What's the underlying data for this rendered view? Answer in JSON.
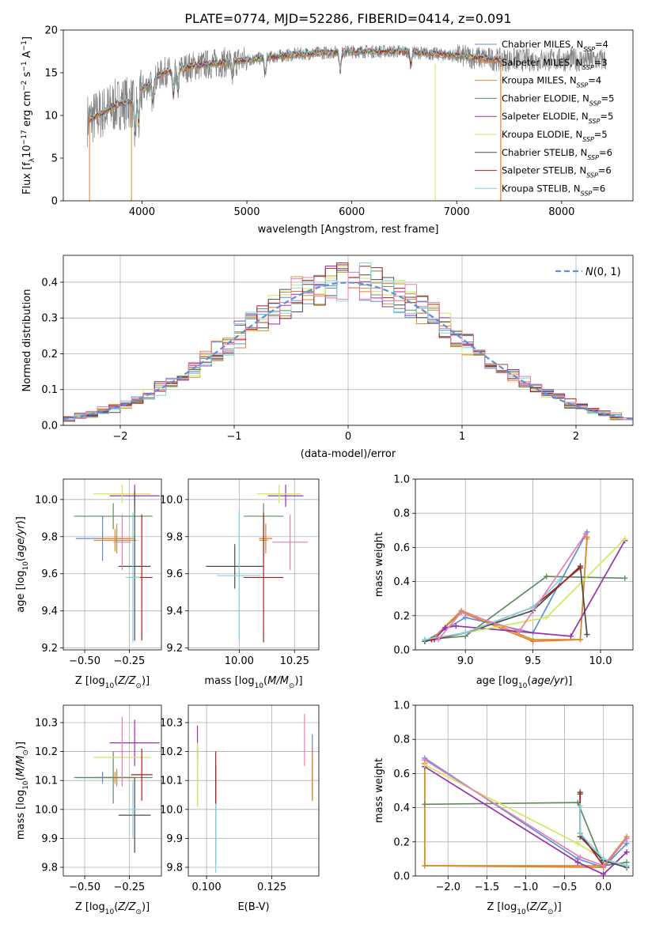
{
  "figure": {
    "title": "PLATE=0774, MJD=52286, FIBERID=0414, z=0.091",
    "colors": {
      "Chabrier MILES": "#5b8fdb",
      "Salpeter MILES": "#e27b33",
      "Kroupa MILES": "#d4902f",
      "Chabrier ELODIE": "#5e8c62",
      "Salpeter ELODIE": "#9a30b0",
      "Kroupa ELODIE": "#cfe85a",
      "Chabrier STELIB": "#4a4a4a",
      "Salpeter STELIB": "#b01c1c",
      "Kroupa STELIB": "#7fd4e0",
      "extra": "#e57fb3",
      "data": "#808080"
    }
  },
  "chart_data": [
    {
      "id": "spectrum",
      "type": "line",
      "xlabel": "wavelength [Angstrom, rest frame]",
      "ylabel_parts": [
        "Flux [f",
        "λ",
        "10",
        "−17",
        " erg cm",
        "−2",
        " s",
        "−1",
        " A",
        "−1",
        "]"
      ],
      "xlim": [
        3250,
        8680
      ],
      "ylim": [
        0,
        20
      ],
      "xticks": [
        4000,
        5000,
        6000,
        7000,
        8000
      ],
      "yticks": [
        0,
        5,
        10,
        15,
        20
      ],
      "grid": false,
      "legend_position": "upper right",
      "legend": [
        {
          "label": "Chabrier MILES, N",
          "sub": "SSP",
          "tail": "=4",
          "key": "Chabrier MILES"
        },
        {
          "label": "Salpeter MILES, N",
          "sub": "SSP",
          "tail": "=3",
          "key": "Salpeter MILES"
        },
        {
          "label": "Kroupa MILES, N",
          "sub": "SSP",
          "tail": "=4",
          "key": "Kroupa MILES"
        },
        {
          "label": "Chabrier ELODIE, N",
          "sub": "SSP",
          "tail": "=5",
          "key": "Chabrier ELODIE"
        },
        {
          "label": "Salpeter ELODIE, N",
          "sub": "SSP",
          "tail": "=5",
          "key": "Salpeter ELODIE"
        },
        {
          "label": "Kroupa ELODIE, N",
          "sub": "SSP",
          "tail": "=5",
          "key": "Kroupa ELODIE"
        },
        {
          "label": "Chabrier STELIB, N",
          "sub": "SSP",
          "tail": "=6",
          "key": "Chabrier STELIB"
        },
        {
          "label": "Salpeter STELIB, N",
          "sub": "SSP",
          "tail": "=6",
          "key": "Salpeter STELIB"
        },
        {
          "label": "Kroupa STELIB, N",
          "sub": "SSP",
          "tail": "=6",
          "key": "Kroupa STELIB"
        }
      ],
      "continuum_points": [
        [
          3500,
          9.5
        ],
        [
          3650,
          10.5
        ],
        [
          3800,
          11.5
        ],
        [
          3900,
          11.5
        ],
        [
          4000,
          13.0
        ],
        [
          4200,
          15.0
        ],
        [
          4500,
          15.8
        ],
        [
          5000,
          16.5
        ],
        [
          5500,
          17.2
        ],
        [
          6000,
          17.5
        ],
        [
          6500,
          17.5
        ],
        [
          7000,
          17.0
        ],
        [
          7420,
          16.5
        ]
      ],
      "data_range": [
        3480,
        8420
      ],
      "models_range": [
        3500,
        7420
      ]
    },
    {
      "id": "residual-histogram",
      "type": "histogram",
      "xlabel": "(data-model)/error",
      "ylabel": "Normed distribution",
      "xlim": [
        -2.5,
        2.5
      ],
      "ylim": [
        0,
        0.475
      ],
      "xticks": [
        -2,
        -1,
        0,
        1,
        2
      ],
      "yticks": [
        0.0,
        0.1,
        0.2,
        0.3,
        0.4
      ],
      "grid": true,
      "legend_position": "upper right",
      "reference_curve": {
        "label": "N(0,1)",
        "color": "#5b8fdb",
        "style": "dashed"
      },
      "bin_width": 0.1
    },
    {
      "id": "age-vs-Z",
      "type": "scatter",
      "xlabel": "Z [log10(Z/Z⊙)]",
      "ylabel": "age  [log10(age/yr)]",
      "xlim": [
        -0.62,
        -0.07
      ],
      "ylim": [
        9.19,
        10.11
      ],
      "xticks": [
        -0.5,
        -0.25
      ],
      "yticks": [
        9.2,
        9.4,
        9.6,
        9.8,
        10.0
      ],
      "grid": true,
      "points": [
        {
          "key": "Chabrier MILES",
          "x": -0.4,
          "y": 9.79,
          "xerr": 0.15,
          "yerr": 0.12
        },
        {
          "key": "Salpeter MILES",
          "x": -0.32,
          "y": 9.79,
          "xerr": 0.1,
          "yerr": 0.08
        },
        {
          "key": "Kroupa MILES",
          "x": -0.33,
          "y": 9.78,
          "xerr": 0.12,
          "yerr": 0.06
        },
        {
          "key": "Chabrier ELODIE",
          "x": -0.34,
          "y": 9.91,
          "xerr": 0.22,
          "yerr": 0.07
        },
        {
          "key": "Salpeter ELODIE",
          "x": -0.22,
          "y": 10.02,
          "xerr": 0.14,
          "yerr": 0.06
        },
        {
          "key": "Kroupa ELODIE",
          "x": -0.29,
          "y": 10.03,
          "xerr": 0.16,
          "yerr": 0.05
        },
        {
          "key": "Chabrier STELIB",
          "x": -0.22,
          "y": 9.64,
          "xerr": 0.09,
          "yerr": 0.4
        },
        {
          "key": "Salpeter STELIB",
          "x": -0.18,
          "y": 9.58,
          "xerr": 0.06,
          "yerr": 0.34
        },
        {
          "key": "Kroupa STELIB",
          "x": -0.23,
          "y": 9.58,
          "xerr": 0.04,
          "yerr": 0.35
        },
        {
          "key": "extra",
          "x": -0.29,
          "y": 9.77,
          "xerr": 0.05,
          "yerr": 0.15
        }
      ]
    },
    {
      "id": "age-vs-mass",
      "type": "scatter",
      "xlabel": "mass [log10(M/M⊙)]",
      "ylabel": "",
      "xlim": [
        9.77,
        10.36
      ],
      "ylim": [
        9.19,
        10.11
      ],
      "xticks": [
        10.0,
        10.25
      ],
      "yticks": [
        9.2,
        9.4,
        9.6,
        9.8,
        10.0
      ],
      "grid": true,
      "points": [
        {
          "key": "Chabrier MILES",
          "x": 10.11,
          "y": 9.79,
          "xerr": 0.02,
          "yerr": 0.12
        },
        {
          "key": "Salpeter MILES",
          "x": 10.12,
          "y": 9.79,
          "xerr": 0.03,
          "yerr": 0.08
        },
        {
          "key": "Kroupa MILES",
          "x": 10.11,
          "y": 9.78,
          "xerr": 0.02,
          "yerr": 0.06
        },
        {
          "key": "Chabrier ELODIE",
          "x": 10.11,
          "y": 9.91,
          "xerr": 0.09,
          "yerr": 0.07
        },
        {
          "key": "Salpeter ELODIE",
          "x": 10.21,
          "y": 10.02,
          "xerr": 0.08,
          "yerr": 0.06
        },
        {
          "key": "Kroupa ELODIE",
          "x": 10.18,
          "y": 10.03,
          "xerr": 0.1,
          "yerr": 0.05
        },
        {
          "key": "Chabrier STELIB",
          "x": 9.98,
          "y": 9.64,
          "xerr": 0.13,
          "yerr": 0.12
        },
        {
          "key": "Salpeter STELIB",
          "x": 10.11,
          "y": 9.58,
          "xerr": 0.09,
          "yerr": 0.35
        },
        {
          "key": "Kroupa STELIB",
          "x": 10.0,
          "y": 9.59,
          "xerr": 0.1,
          "yerr": 0.35
        },
        {
          "key": "extra",
          "x": 10.23,
          "y": 9.77,
          "xerr": 0.08,
          "yerr": 0.15
        }
      ]
    },
    {
      "id": "weight-vs-age",
      "type": "line",
      "xlabel": "age  [log10(age/yr)]",
      "ylabel": "mass weight",
      "xlim": [
        8.63,
        10.24
      ],
      "ylim": [
        0,
        1
      ],
      "xticks": [
        9.0,
        9.5,
        10.0
      ],
      "yticks": [
        0.0,
        0.2,
        0.4,
        0.6,
        0.8,
        1.0
      ],
      "grid": true,
      "series": [
        {
          "key": "Chabrier MILES",
          "points": [
            [
              8.7,
              0.05
            ],
            [
              9.0,
              0.19
            ],
            [
              9.5,
              0.1
            ],
            [
              9.9,
              0.69
            ]
          ]
        },
        {
          "key": "Salpeter MILES",
          "points": [
            [
              8.75,
              0.06
            ],
            [
              8.97,
              0.22
            ],
            [
              9.5,
              0.05
            ],
            [
              9.85,
              0.06
            ],
            [
              9.9,
              0.66
            ]
          ]
        },
        {
          "key": "Kroupa MILES",
          "points": [
            [
              8.75,
              0.06
            ],
            [
              8.97,
              0.23
            ],
            [
              9.5,
              0.06
            ],
            [
              9.85,
              0.06
            ],
            [
              9.9,
              0.65
            ]
          ]
        },
        {
          "key": "Chabrier ELODIE",
          "points": [
            [
              8.7,
              0.06
            ],
            [
              9.0,
              0.08
            ],
            [
              9.6,
              0.43
            ],
            [
              10.18,
              0.42
            ]
          ]
        },
        {
          "key": "Salpeter ELODIE",
          "points": [
            [
              8.77,
              0.06
            ],
            [
              8.85,
              0.13
            ],
            [
              8.93,
              0.14
            ],
            [
              9.78,
              0.08
            ],
            [
              10.18,
              0.64
            ]
          ]
        },
        {
          "key": "Kroupa ELODIE",
          "points": [
            [
              8.75,
              0.06
            ],
            [
              9.0,
              0.1
            ],
            [
              9.6,
              0.19
            ],
            [
              10.18,
              0.65
            ]
          ]
        },
        {
          "key": "Chabrier STELIB",
          "points": [
            [
              8.7,
              0.05
            ],
            [
              9.0,
              0.1
            ],
            [
              9.5,
              0.23
            ],
            [
              9.85,
              0.49
            ],
            [
              9.9,
              0.09
            ]
          ]
        },
        {
          "key": "Salpeter STELIB",
          "points": [
            [
              8.75,
              0.06
            ],
            [
              9.0,
              0.1
            ],
            [
              9.5,
              0.25
            ],
            [
              9.85,
              0.48
            ]
          ]
        },
        {
          "key": "Kroupa STELIB",
          "points": [
            [
              8.7,
              0.06
            ],
            [
              9.0,
              0.1
            ],
            [
              9.5,
              0.25
            ],
            [
              9.7,
              0.41
            ]
          ]
        },
        {
          "key": "extra",
          "points": [
            [
              8.8,
              0.06
            ],
            [
              8.97,
              0.22
            ],
            [
              9.4,
              0.11
            ],
            [
              9.89,
              0.68
            ]
          ]
        }
      ]
    },
    {
      "id": "mass-vs-Z",
      "type": "scatter",
      "xlabel": "Z [log10(Z/Z⊙)]",
      "ylabel": "mass [log10(M/M⊙)]",
      "xlim": [
        -0.62,
        -0.07
      ],
      "ylim": [
        9.77,
        10.36
      ],
      "xticks": [
        -0.5,
        -0.25
      ],
      "yticks": [
        9.8,
        9.9,
        10.0,
        10.1,
        10.2,
        10.3
      ],
      "grid": true,
      "points": [
        {
          "key": "Chabrier MILES",
          "x": -0.4,
          "y": 10.11,
          "xerr": 0.15,
          "yerr": 0.02
        },
        {
          "key": "Salpeter MILES",
          "x": -0.32,
          "y": 10.11,
          "xerr": 0.1,
          "yerr": 0.03
        },
        {
          "key": "Kroupa MILES",
          "x": -0.33,
          "y": 10.11,
          "xerr": 0.12,
          "yerr": 0.02
        },
        {
          "key": "Chabrier ELODIE",
          "x": -0.34,
          "y": 10.11,
          "xerr": 0.22,
          "yerr": 0.09
        },
        {
          "key": "Salpeter ELODIE",
          "x": -0.22,
          "y": 10.23,
          "xerr": 0.14,
          "yerr": 0.08
        },
        {
          "key": "Kroupa ELODIE",
          "x": -0.29,
          "y": 10.18,
          "xerr": 0.16,
          "yerr": 0.1
        },
        {
          "key": "Chabrier STELIB",
          "x": -0.22,
          "y": 9.98,
          "xerr": 0.09,
          "yerr": 0.13
        },
        {
          "key": "Salpeter STELIB",
          "x": -0.18,
          "y": 10.12,
          "xerr": 0.06,
          "yerr": 0.09
        },
        {
          "key": "Kroupa STELIB",
          "x": -0.23,
          "y": 10.0,
          "xerr": 0.04,
          "yerr": 0.1
        },
        {
          "key": "extra",
          "x": -0.29,
          "y": 10.2,
          "xerr": 0.05,
          "yerr": 0.12
        }
      ]
    },
    {
      "id": "mass-vs-ebv",
      "type": "scatter",
      "xlabel": "E(B-V)",
      "ylabel": "",
      "xlim": [
        0.093,
        0.143
      ],
      "ylim": [
        9.77,
        10.36
      ],
      "xticks": [
        0.1,
        0.125
      ],
      "yticks": [
        9.8,
        9.9,
        10.0,
        10.1,
        10.2,
        10.3
      ],
      "grid": true,
      "points": [
        {
          "key": "Chabrier MILES",
          "x": 0.1405,
          "y": 10.16,
          "yerr": 0.1
        },
        {
          "key": "Salpeter MILES",
          "x": 0.1405,
          "y": 10.12,
          "yerr": 0.09
        },
        {
          "key": "Kroupa MILES",
          "x": 0.1405,
          "y": 10.11,
          "yerr": 0.08
        },
        {
          "key": "Chabrier ELODIE",
          "x": 0.0965,
          "y": 10.11,
          "yerr": 0.1
        },
        {
          "key": "Salpeter ELODIE",
          "x": 0.0965,
          "y": 10.23,
          "yerr": 0.06
        },
        {
          "key": "Kroupa ELODIE",
          "x": 0.0965,
          "y": 10.12,
          "yerr": 0.11
        },
        {
          "key": "Chabrier STELIB",
          "x": 0.1035,
          "y": 9.98,
          "yerr": 0.17
        },
        {
          "key": "Salpeter STELIB",
          "x": 0.1035,
          "y": 10.11,
          "yerr": 0.09
        },
        {
          "key": "Kroupa STELIB",
          "x": 0.1035,
          "y": 9.9,
          "yerr": 0.12
        },
        {
          "key": "extra",
          "x": 0.1375,
          "y": 10.24,
          "yerr": 0.09
        }
      ]
    },
    {
      "id": "weight-vs-Z",
      "type": "line",
      "xlabel": "Z [log10(Z/Z⊙)]",
      "ylabel": "mass weight",
      "xlim": [
        -2.42,
        0.38
      ],
      "ylim": [
        0,
        1
      ],
      "xticks": [
        -2.0,
        -1.5,
        -1.0,
        -0.5,
        0.0
      ],
      "yticks": [
        0.0,
        0.2,
        0.4,
        0.6,
        0.8,
        1.0
      ],
      "grid": true,
      "series": [
        {
          "key": "Chabrier MILES",
          "points": [
            [
              -2.3,
              0.69
            ],
            [
              -0.33,
              0.1
            ],
            [
              0.0,
              0.05
            ],
            [
              0.3,
              0.19
            ]
          ]
        },
        {
          "key": "Salpeter MILES",
          "points": [
            [
              -2.3,
              0.66
            ],
            [
              -2.3,
              0.06
            ],
            [
              0.0,
              0.05
            ],
            [
              0.3,
              0.22
            ]
          ]
        },
        {
          "key": "Kroupa MILES",
          "points": [
            [
              -2.3,
              0.65
            ],
            [
              -2.3,
              0.06
            ],
            [
              0.0,
              0.06
            ],
            [
              0.3,
              0.23
            ]
          ]
        },
        {
          "key": "Chabrier ELODIE",
          "points": [
            [
              -2.3,
              0.42
            ],
            [
              -0.33,
              0.43
            ],
            [
              0.0,
              0.06
            ],
            [
              0.3,
              0.08
            ]
          ]
        },
        {
          "key": "Salpeter ELODIE",
          "points": [
            [
              -2.3,
              0.64
            ],
            [
              -0.33,
              0.08
            ],
            [
              0.0,
              0.01
            ],
            [
              0.3,
              0.14
            ]
          ]
        },
        {
          "key": "Kroupa ELODIE",
          "points": [
            [
              -2.3,
              0.65
            ],
            [
              -0.33,
              0.19
            ],
            [
              0.0,
              0.1
            ],
            [
              0.3,
              0.06
            ]
          ]
        },
        {
          "key": "Chabrier STELIB",
          "points": [
            [
              -0.3,
              0.49
            ],
            [
              -0.3,
              0.23
            ],
            [
              0.0,
              0.09
            ],
            [
              0.3,
              0.05
            ]
          ]
        },
        {
          "key": "Salpeter STELIB",
          "points": [
            [
              -0.3,
              0.48
            ],
            [
              -0.3,
              0.25
            ],
            [
              0.0,
              0.06
            ]
          ]
        },
        {
          "key": "Kroupa STELIB",
          "points": [
            [
              -0.3,
              0.41
            ],
            [
              -0.3,
              0.25
            ],
            [
              0.0,
              0.1
            ],
            [
              0.3,
              0.06
            ]
          ]
        },
        {
          "key": "extra",
          "points": [
            [
              -2.3,
              0.68
            ],
            [
              -0.3,
              0.11
            ],
            [
              0.0,
              0.06
            ],
            [
              0.3,
              0.22
            ]
          ]
        }
      ]
    }
  ]
}
